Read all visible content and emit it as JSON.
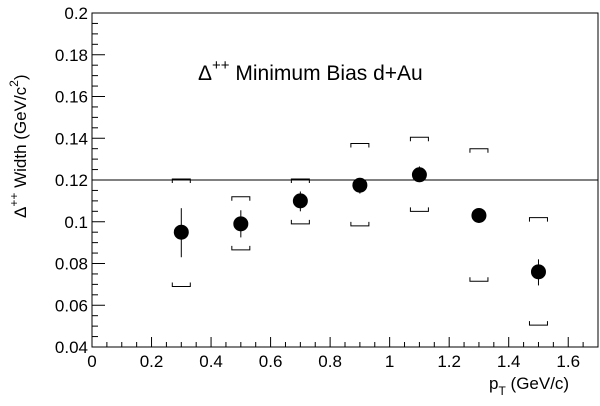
{
  "chart_data": {
    "type": "scatter",
    "annotation": {
      "symbol": "Δ",
      "superscript": "++",
      "text": " Minimum Bias d+Au"
    },
    "xlabel": {
      "main": "p",
      "sub": "T",
      "rest": " (GeV/c)"
    },
    "ylabel": {
      "symbol": "Δ",
      "superscript": "++",
      "text": " Width (GeV/c",
      "unit_sup": "2",
      "close": ")"
    },
    "xlim": [
      0,
      1.7
    ],
    "ylim": [
      0.04,
      0.2
    ],
    "x_ticks": [
      0,
      0.2,
      0.4,
      0.6,
      0.8,
      1,
      1.2,
      1.4,
      1.6
    ],
    "x_tick_labels": [
      "0",
      "0.2",
      "0.4",
      "0.6",
      "0.8",
      "1",
      "1.2",
      "1.4",
      "1.6"
    ],
    "y_ticks": [
      0.04,
      0.06,
      0.08,
      0.1,
      0.12,
      0.14,
      0.16,
      0.18,
      0.2
    ],
    "y_tick_labels": [
      "0.04",
      "0.06",
      "0.08",
      "0.1",
      "0.12",
      "0.14",
      "0.16",
      "0.18",
      "0.2"
    ],
    "reference_line_y": 0.12,
    "grid": false,
    "series": [
      {
        "points": [
          {
            "x": 0.3,
            "y": 0.095,
            "stat_lo": 0.083,
            "stat_hi": 0.1065,
            "sys_lo": 0.069,
            "sys_hi": 0.1205
          },
          {
            "x": 0.5,
            "y": 0.099,
            "stat_lo": 0.0925,
            "stat_hi": 0.1055,
            "sys_lo": 0.0865,
            "sys_hi": 0.112
          },
          {
            "x": 0.7,
            "y": 0.11,
            "stat_lo": 0.105,
            "stat_hi": 0.1145,
            "sys_lo": 0.099,
            "sys_hi": 0.1205
          },
          {
            "x": 0.9,
            "y": 0.1175,
            "stat_lo": 0.1135,
            "stat_hi": 0.121,
            "sys_lo": 0.098,
            "sys_hi": 0.1375
          },
          {
            "x": 1.1,
            "y": 0.1225,
            "stat_lo": 0.119,
            "stat_hi": 0.1265,
            "sys_lo": 0.105,
            "sys_hi": 0.1405
          },
          {
            "x": 1.3,
            "y": 0.103,
            "stat_lo": 0.0995,
            "stat_hi": 0.1065,
            "sys_lo": 0.0715,
            "sys_hi": 0.135
          },
          {
            "x": 1.5,
            "y": 0.076,
            "stat_lo": 0.0695,
            "stat_hi": 0.082,
            "sys_lo": 0.0505,
            "sys_hi": 0.102
          }
        ]
      }
    ]
  }
}
